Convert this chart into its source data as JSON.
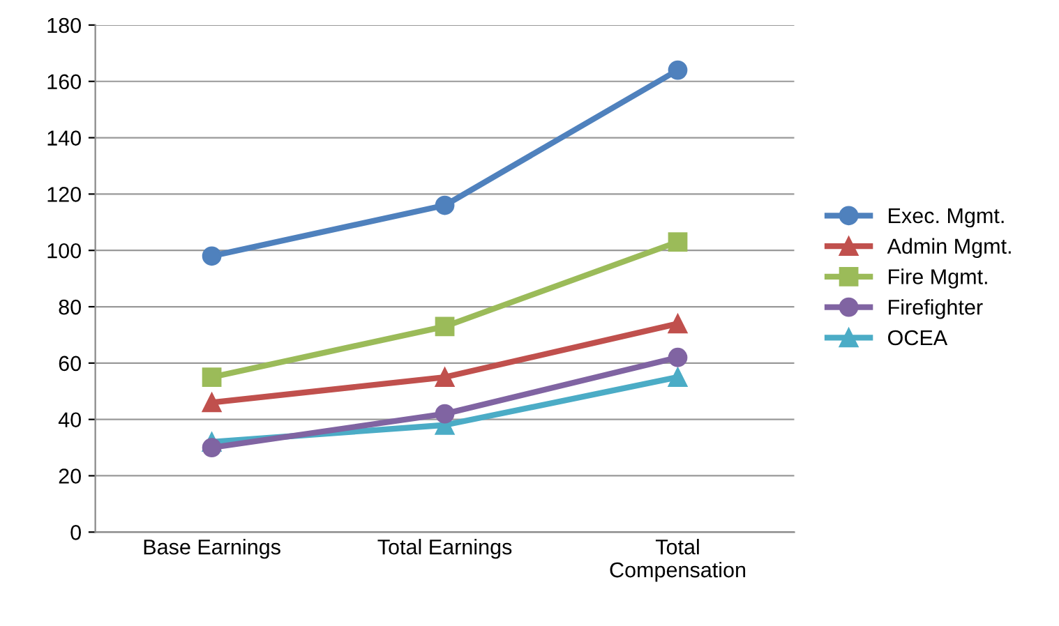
{
  "chart_data": {
    "type": "line",
    "categories": [
      "Base Earnings",
      "Total Earnings",
      "Total\nCompensation"
    ],
    "series": [
      {
        "name": "Exec. Mgmt.",
        "color": "#4f81bd",
        "marker": "circle",
        "values": [
          98,
          116,
          164
        ]
      },
      {
        "name": "Admin Mgmt.",
        "color": "#c0504d",
        "marker": "triangle",
        "values": [
          46,
          55,
          74
        ]
      },
      {
        "name": "Fire Mgmt.",
        "color": "#9bbb59",
        "marker": "square",
        "values": [
          55,
          73,
          103
        ]
      },
      {
        "name": "Firefighter",
        "color": "#8064a2",
        "marker": "circle",
        "values": [
          30,
          42,
          62
        ]
      },
      {
        "name": "OCEA",
        "color": "#4bacc6",
        "marker": "triangle",
        "values": [
          32,
          38,
          55
        ]
      }
    ],
    "ylim": [
      0,
      180
    ],
    "yticks": [
      0,
      20,
      40,
      60,
      80,
      100,
      120,
      140,
      160,
      180
    ],
    "grid": "y",
    "legend": "right",
    "line_style": "solid"
  }
}
